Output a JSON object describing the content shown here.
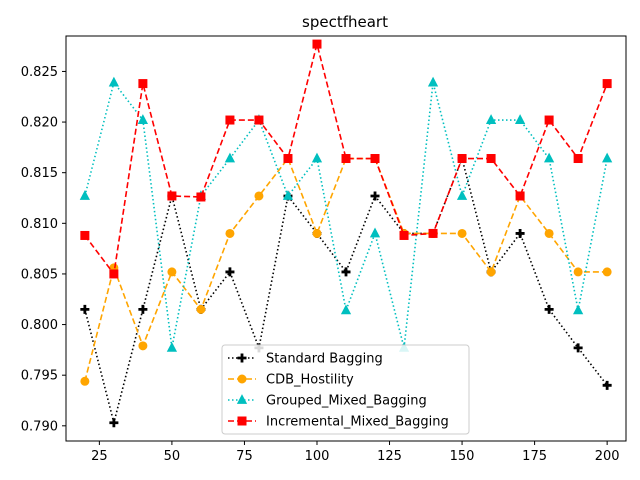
{
  "chart_data": {
    "type": "line",
    "title": "spectfheart",
    "xlabel": "",
    "ylabel": "",
    "x": [
      20,
      30,
      40,
      50,
      60,
      70,
      80,
      90,
      100,
      110,
      120,
      130,
      140,
      150,
      160,
      170,
      180,
      190,
      200
    ],
    "xlim": [
      13.5,
      206.5
    ],
    "ylim": [
      0.7885,
      0.8285
    ],
    "xticks": [
      25,
      50,
      75,
      100,
      125,
      150,
      175,
      200
    ],
    "yticks": [
      0.79,
      0.795,
      0.8,
      0.805,
      0.81,
      0.815,
      0.82,
      0.825
    ],
    "xtick_labels": [
      "25",
      "50",
      "75",
      "100",
      "125",
      "150",
      "175",
      "200"
    ],
    "ytick_labels": [
      "0.790",
      "0.795",
      "0.800",
      "0.805",
      "0.810",
      "0.815",
      "0.820",
      "0.825"
    ],
    "grid": false,
    "legend_position": "lower-center",
    "series": [
      {
        "name": "Standard Bagging",
        "color": "#000000",
        "dash": "dotted",
        "marker": "plus",
        "values": [
          0.8015,
          0.7903,
          0.8015,
          0.8127,
          0.8015,
          0.8052,
          0.7977,
          0.8127,
          0.809,
          0.8052,
          0.8127,
          0.809,
          0.809,
          0.8164,
          0.8052,
          0.809,
          0.8015,
          0.7977,
          0.794
        ]
      },
      {
        "name": "CDB_Hostility",
        "color": "#FFA500",
        "dash": "dashed",
        "marker": "circle",
        "values": [
          0.7944,
          0.8056,
          0.7979,
          0.8052,
          0.8015,
          0.809,
          0.8127,
          0.8164,
          0.809,
          0.8164,
          0.8164,
          0.809,
          0.809,
          0.809,
          0.8052,
          0.8127,
          0.809,
          0.8052,
          0.8052
        ]
      },
      {
        "name": "Grouped_Mixed_Bagging",
        "color": "#00BFBF",
        "dash": "dotted",
        "marker": "triangle",
        "values": [
          0.8127,
          0.8239,
          0.8202,
          0.7977,
          0.8127,
          0.8164,
          0.8202,
          0.8127,
          0.8164,
          0.8014,
          0.809,
          0.7977,
          0.8239,
          0.8127,
          0.8202,
          0.8202,
          0.8164,
          0.8014,
          0.8164
        ]
      },
      {
        "name": "Incremental_Mixed_Bagging",
        "color": "#FF0000",
        "dash": "dashed",
        "marker": "square",
        "values": [
          0.8088,
          0.805,
          0.8238,
          0.8127,
          0.8126,
          0.8202,
          0.8202,
          0.8164,
          0.8277,
          0.8164,
          0.8164,
          0.8088,
          0.809,
          0.8164,
          0.8164,
          0.8127,
          0.8202,
          0.8164,
          0.8238
        ]
      }
    ]
  }
}
